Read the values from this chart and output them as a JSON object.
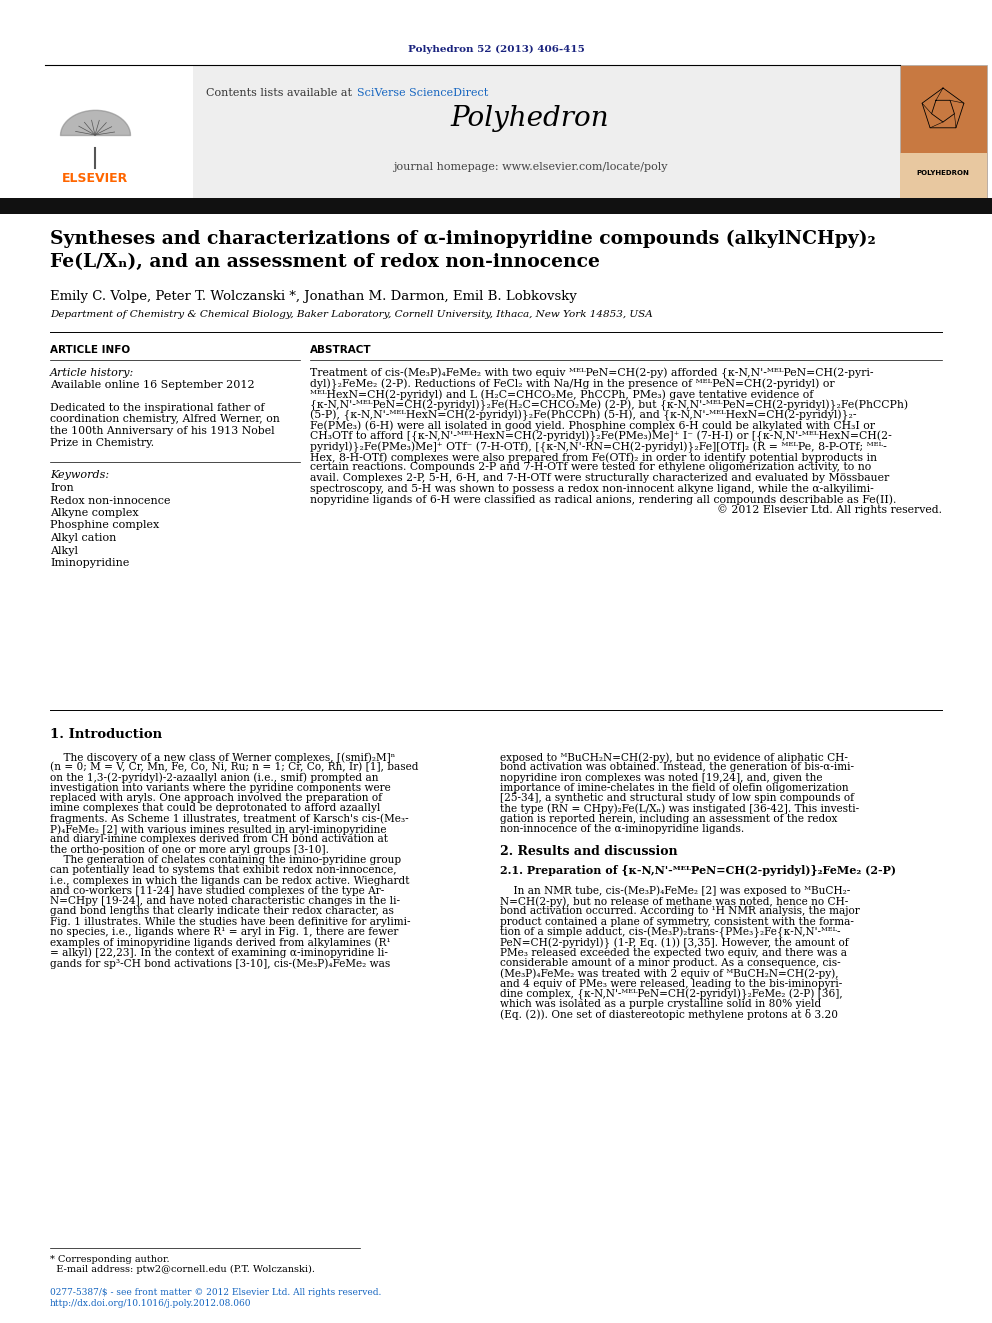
{
  "page_width": 9.92,
  "page_height": 13.23,
  "bg_color": "#ffffff",
  "journal_ref": "Polyhedron 52 (2013) 406-415",
  "journal_ref_color": "#1a237e",
  "elsevier_color": "#ff6600",
  "sciverse_color": "#1565c0",
  "journal_name": "Polyhedron",
  "journal_url": "journal homepage: www.elsevier.com/locate/poly",
  "title_line1": "Syntheses and characterizations of α-iminopyridine compounds (alkylNCHpy)₂",
  "title_line2": "Fe(L/Xₙ), and an assessment of redox non-innocence",
  "authors": "Emily C. Volpe, Peter T. Wolczanski *, Jonathan M. Darmon, Emil B. Lobkovsky",
  "affiliation": "Department of Chemistry & Chemical Biology, Baker Laboratory, Cornell University, Ithaca, New York 14853, USA",
  "article_info_header": "ARTICLE INFO",
  "abstract_header": "ABSTRACT",
  "article_history_label": "Article history:",
  "available_online": "Available online 16 September 2012",
  "dedication_lines": [
    "Dedicated to the inspirational father of",
    "coordination chemistry, Alfred Werner, on",
    "the 100th Anniversary of his 1913 Nobel",
    "Prize in Chemistry."
  ],
  "keywords_label": "Keywords:",
  "keywords": [
    "Iron",
    "Redox non-innocence",
    "Alkyne complex",
    "Phosphine complex",
    "Alkyl cation",
    "Alkyl",
    "Iminopyridine"
  ],
  "abstract_lines": [
    "Treatment of cis-(Me₃P)₄FeMe₂ with two equiv ᴹᴱᴸPeN=CH(2-py) afforded {κ-N,N'-ᴹᴱᴸPeN=CH(2-pyri-",
    "dyl)}₂FeMe₂ (2-P). Reductions of FeCl₂ with Na/Hg in the presence of ᴹᴱᴸPeN=CH(2-pyridyl) or",
    "ᴹᴱᴸHexN=CH(2-pyridyl) and L (H₂C=CHCO₂Me, PhCCPh, PMe₃) gave tentative evidence of",
    "{κ-N,N'-ᴹᴱᴸPeN=CH(2-pyridyl)}₂Fe(H₂C=CHCO₂Me) (2-P), but {κ-N,N'-ᴹᴱᴸPeN=CH(2-pyridyl)}₂Fe(PhCCPh)",
    "(5-P), {κ-N,N'-ᴹᴱᴸHexN=CH(2-pyridyl)}₂Fe(PhCCPh) (5-H), and {κ-N,N'-ᴹᴱᴸHexN=CH(2-pyridyl)}₂-",
    "Fe(PMe₃) (6-H) were all isolated in good yield. Phosphine complex 6-H could be alkylated with CH₃I or",
    "CH₃OTf to afford [{κ-N,N'-ᴹᴱᴸHexN=CH(2-pyridyl)}₂Fe(PMe₃)Me]⁺ I⁻ (7-H-I) or [{κ-N,N'-ᴹᴱᴸHexN=CH(2-",
    "pyridyl)}₂Fe(PMe₃)Me]⁺ OTf⁻ (7-H-OTf), [{κ-N,N'-RN=CH(2-pyridyl)}₂Fe][OTf]₂ (R = ᴹᴱᴸPe, 8-P-OTf; ᴹᴱᴸ-",
    "Hex, 8-H-OTf) complexes were also prepared from Fe(OTf)₂ in order to identify potential byproducts in",
    "certain reactions. Compounds 2-P and 7-H-OTf were tested for ethylene oligomerization activity, to no",
    "avail. Complexes 2-P, 5-H, 6-H, and 7-H-OTf were structurally characterized and evaluated by Mössbauer",
    "spectroscopy, and 5-H was shown to possess a redox non-innocent alkyne ligand, while the α-alkyilimi-",
    "nopyridine ligands of 6-H were classified as radical anions, rendering all compounds describable as Fe(II).",
    "© 2012 Elsevier Ltd. All rights reserved."
  ],
  "section1_title": "1. Introduction",
  "intro_left_lines": [
    "    The discovery of a new class of Werner complexes, [(smif)₂M]ⁿ",
    "(n = 0; M = V, Cr, Mn, Fe, Co, Ni, Ru; n = 1; Cr, Co, Rh, Ir) [1], based",
    "on the 1,3-(2-pyridyl)-2-azaallyl anion (i.e., smif) prompted an",
    "investigation into variants where the pyridine components were",
    "replaced with aryls. One approach involved the preparation of",
    "imine complexes that could be deprotonated to afford azaallyl",
    "fragments. As Scheme 1 illustrates, treatment of Karsch's cis-(Me₃-",
    "P)₄FeMe₂ [2] with various imines resulted in aryl-iminopyridine",
    "and diaryl-imine complexes derived from CH bond activation at",
    "the ortho-position of one or more aryl groups [3-10].",
    "    The generation of chelates containing the imino-pyridine group",
    "can potentially lead to systems that exhibit redox non-innocence,",
    "i.e., complexes in which the ligands can be redox active. Wieghardt",
    "and co-workers [11-24] have studied complexes of the type Ar-",
    "N=CHpy [19-24], and have noted characteristic changes in the li-",
    "gand bond lengths that clearly indicate their redox character, as",
    "Fig. 1 illustrates. While the studies have been definitive for arylimi-",
    "no species, i.e., ligands where R¹ = aryl in Fig. 1, there are fewer",
    "examples of iminopyridine ligands derived from alkylamines (R¹",
    "= alkyl) [22,23]. In the context of examining α-iminopyridine li-",
    "gands for sp³-CH bond activations [3-10], cis-(Me₃P)₄FeMe₂ was"
  ],
  "intro_right_lines": [
    "exposed to ᴹBuCH₂N=CH(2-py), but no evidence of aliphatic CH-",
    "bond activation was obtained. Instead, the generation of bis-α-imi-",
    "nopyridine iron complexes was noted [19,24], and, given the",
    "importance of imine-chelates in the field of olefin oligomerization",
    "[25-34], a synthetic and structural study of low spin compounds of",
    "the type (RN = CHpy)₂Fe(L/Xₙ) was instigated [36-42]. This investi-",
    "gation is reported herein, including an assessment of the redox",
    "non-innocence of the α-iminopyridine ligands.",
    "",
    "2. Results and discussion",
    "",
    "2.1. Preparation of {κ-N,N'-ᴹᴱᴸPeN=CH(2-pyridyl)}₂FeMe₂ (2-P)",
    "",
    "    In an NMR tube, cis-(Me₃P)₄FeMe₂ [2] was exposed to ᴹBuCH₂-",
    "N=CH(2-py), but no release of methane was noted, hence no CH-",
    "bond activation occurred. According to ¹H NMR analysis, the major",
    "product contained a plane of symmetry, consistent with the forma-",
    "tion of a simple adduct, cis-(Me₃P)₂trans-{PMe₃}₂Fe{κ-N,N'-ᴹᴱᴸ-",
    "PeN=CH(2-pyridyl)} (1-P, Eq. (1)) [3,35]. However, the amount of",
    "PMe₃ released exceeded the expected two equiv, and there was a",
    "considerable amount of a minor product. As a consequence, cis-",
    "(Me₃P)₄FeMe₂ was treated with 2 equiv of ᴹBuCH₂N=CH(2-py),",
    "and 4 equiv of PMe₃ were released, leading to the bis-iminopyri-",
    "dine complex, {κ-N,N'-ᴹᴱᴸPeN=CH(2-pyridyl)}₂FeMe₂ (2-P) [36],",
    "which was isolated as a purple crystalline solid in 80% yield",
    "(Eq. (2)). One set of diastereotopic methylene protons at δ 3.20"
  ],
  "footnote_star": "* Corresponding author.",
  "footnote_email": "  E-mail address: ptw2@cornell.edu (P.T. Wolczanski).",
  "footer_line1": "0277-5387/$ - see front matter © 2012 Elsevier Ltd. All rights reserved.",
  "footer_line2": "http://dx.doi.org/10.1016/j.poly.2012.08.060"
}
